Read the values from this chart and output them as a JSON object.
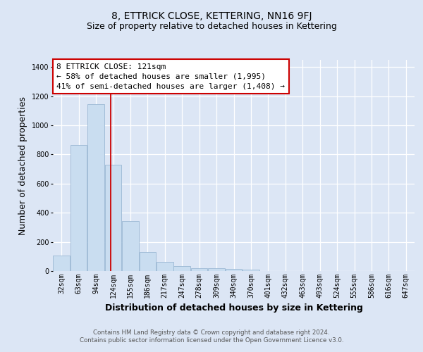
{
  "title": "8, ETTRICK CLOSE, KETTERING, NN16 9FJ",
  "subtitle": "Size of property relative to detached houses in Kettering",
  "xlabel": "Distribution of detached houses by size in Kettering",
  "ylabel": "Number of detached properties",
  "bin_labels": [
    "32sqm",
    "63sqm",
    "94sqm",
    "124sqm",
    "155sqm",
    "186sqm",
    "217sqm",
    "247sqm",
    "278sqm",
    "309sqm",
    "340sqm",
    "370sqm",
    "401sqm",
    "432sqm",
    "463sqm",
    "493sqm",
    "524sqm",
    "555sqm",
    "586sqm",
    "616sqm",
    "647sqm"
  ],
  "bar_values": [
    105,
    865,
    1145,
    730,
    345,
    130,
    63,
    33,
    18,
    18,
    13,
    8,
    0,
    0,
    0,
    0,
    0,
    0,
    0,
    0,
    0
  ],
  "bar_color": "#c9ddf0",
  "bar_edge_color": "#9ab8d4",
  "red_line_x": 2.87,
  "red_line_color": "#cc0000",
  "annotation_line1": "8 ETTRICK CLOSE: 121sqm",
  "annotation_line2": "← 58% of detached houses are smaller (1,995)",
  "annotation_line3": "41% of semi-detached houses are larger (1,408) →",
  "ylim": [
    0,
    1450
  ],
  "yticks": [
    0,
    200,
    400,
    600,
    800,
    1000,
    1200,
    1400
  ],
  "plot_bg_color": "#dce6f5",
  "fig_bg_color": "#dce6f5",
  "grid_color": "#ffffff",
  "footer_line1": "Contains HM Land Registry data © Crown copyright and database right 2024.",
  "footer_line2": "Contains public sector information licensed under the Open Government Licence v3.0.",
  "title_fontsize": 10,
  "subtitle_fontsize": 9,
  "axis_label_fontsize": 9,
  "tick_fontsize": 7,
  "annotation_fontsize": 8
}
